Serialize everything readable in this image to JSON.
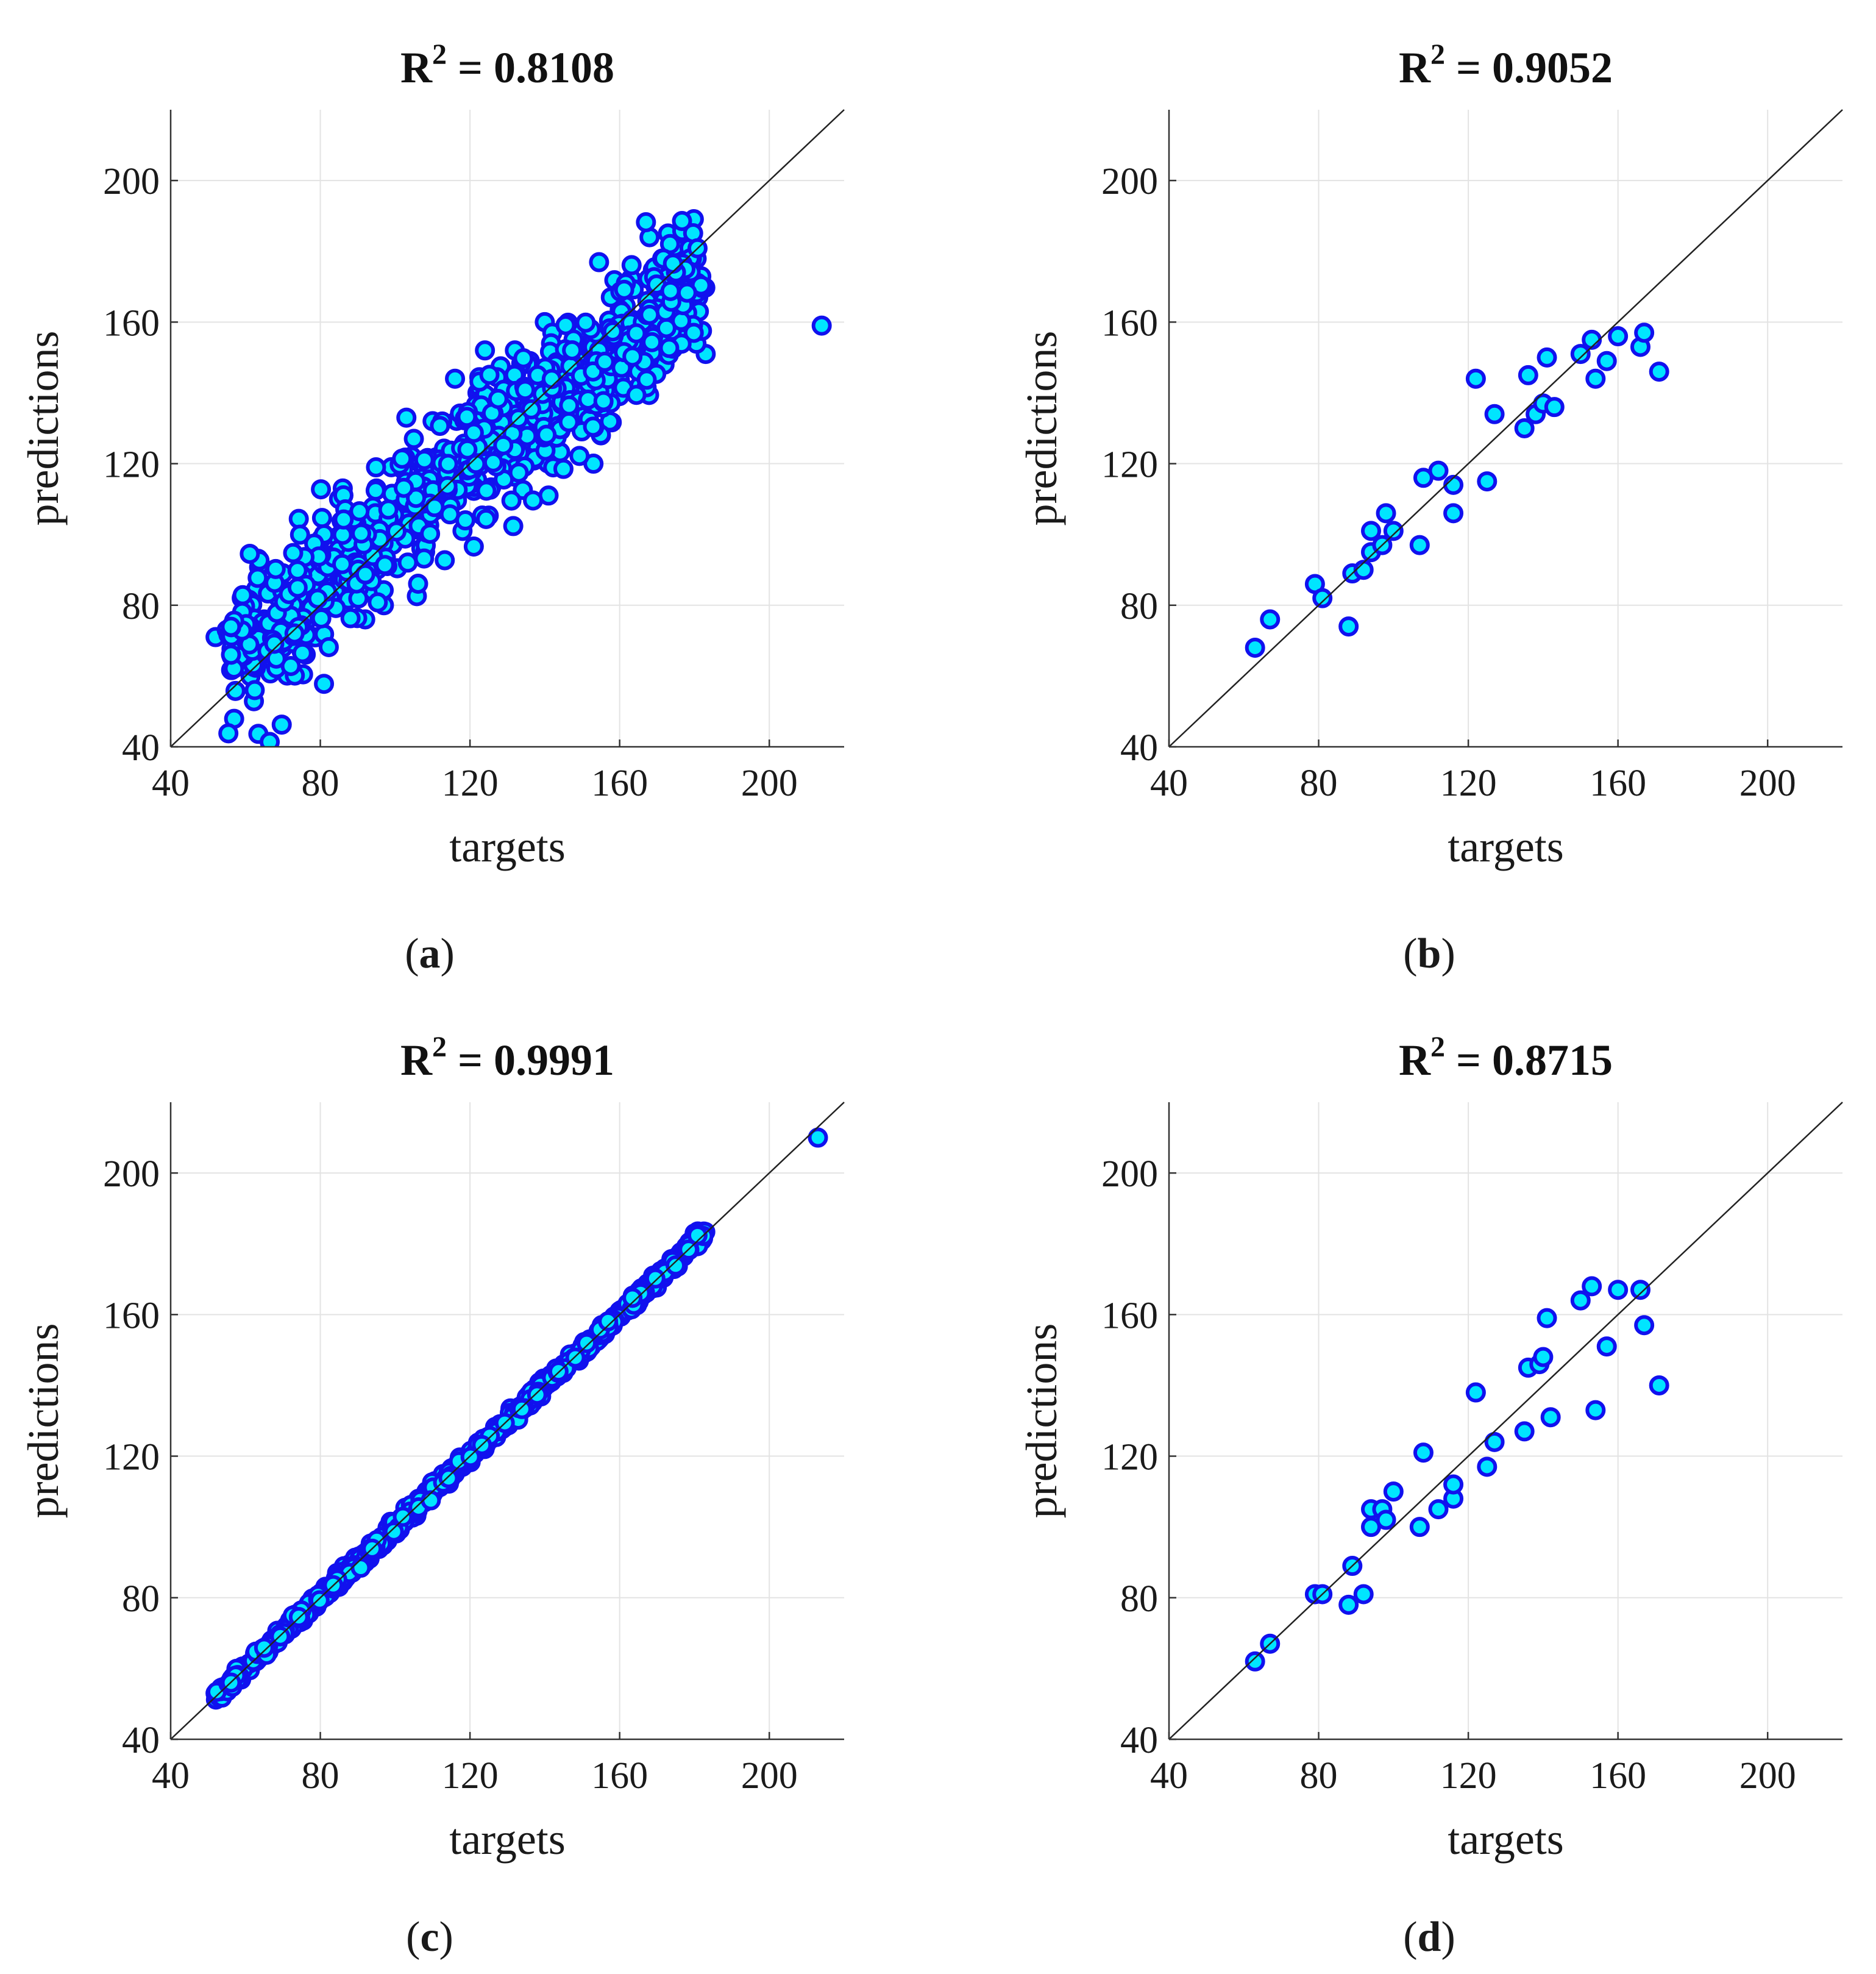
{
  "figure": {
    "captions": [
      "a",
      "b",
      "c",
      "d"
    ]
  },
  "style": {
    "marker_fill": "#00e5ff",
    "marker_edge": "#1111ee",
    "grid_color": "#e3e3e3",
    "axis_color": "#333333",
    "text_color": "#1a1a1a",
    "diag_color": "#222222"
  },
  "chart_data": [
    {
      "type": "scatter",
      "title_prefix": "R",
      "title_sup": "2",
      "title_value": " = 0.8108",
      "xlabel": "targets",
      "ylabel": "predictions",
      "xlim": [
        40,
        220
      ],
      "ylim": [
        40,
        220
      ],
      "xticks": [
        40,
        80,
        120,
        160,
        200
      ],
      "yticks": [
        40,
        80,
        120,
        160,
        200
      ],
      "grid": true,
      "reference_line": "y = x",
      "description": "training set, ~800 points clustered around y=x with spread ~12",
      "points": [
        [
          52,
          71
        ],
        [
          55,
          73
        ],
        [
          57,
          69
        ],
        [
          59,
          82
        ],
        [
          59,
          77
        ],
        [
          65,
          76
        ],
        [
          67,
          70
        ],
        [
          68,
          86
        ],
        [
          70,
          68
        ],
        [
          72,
          80
        ],
        [
          74,
          73
        ],
        [
          75,
          67
        ],
        [
          76,
          75
        ],
        [
          78,
          86
        ],
        [
          80,
          78
        ],
        [
          82,
          94
        ],
        [
          84,
          84
        ],
        [
          85,
          110
        ],
        [
          86,
          113
        ],
        [
          88,
          97
        ],
        [
          90,
          105
        ],
        [
          92,
          76
        ],
        [
          94,
          84
        ],
        [
          95,
          113
        ],
        [
          97,
          80
        ],
        [
          99,
          119
        ],
        [
          101,
          109
        ],
        [
          103,
          133
        ],
        [
          105,
          127
        ],
        [
          107,
          96
        ],
        [
          110,
          132
        ],
        [
          112,
          118
        ],
        [
          114,
          112
        ],
        [
          116,
          144
        ],
        [
          118,
          101
        ],
        [
          120,
          121
        ],
        [
          122,
          140
        ],
        [
          124,
          152
        ],
        [
          126,
          134
        ],
        [
          128,
          125
        ],
        [
          130,
          117
        ],
        [
          132,
          152
        ],
        [
          134,
          131
        ],
        [
          136,
          149
        ],
        [
          138,
          145
        ],
        [
          140,
          160
        ],
        [
          141,
          111
        ],
        [
          142,
          157
        ],
        [
          144,
          146
        ],
        [
          146,
          152
        ],
        [
          148,
          138
        ],
        [
          150,
          158
        ],
        [
          152,
          153
        ],
        [
          153,
          120
        ],
        [
          155,
          128
        ],
        [
          158,
          141
        ],
        [
          160,
          153
        ],
        [
          163,
          151
        ],
        [
          165,
          155
        ],
        [
          167,
          140
        ],
        [
          168,
          158
        ],
        [
          170,
          147
        ],
        [
          172,
          148
        ],
        [
          174,
          160
        ],
        [
          176,
          158
        ],
        [
          177,
          165
        ],
        [
          179,
          168
        ],
        [
          181,
          167
        ],
        [
          183,
          151
        ],
        [
          214,
          159
        ]
      ],
      "generated": {
        "count": 780,
        "x_range": [
          55,
          183
        ],
        "noise_sd": 11,
        "seed": 17
      }
    },
    {
      "type": "scatter",
      "title_prefix": "R",
      "title_sup": "2",
      "title_value": " = 0.9052",
      "xlabel": "targets",
      "ylabel": "predictions",
      "xlim": [
        40,
        220
      ],
      "ylim": [
        40,
        220
      ],
      "xticks": [
        40,
        80,
        120,
        160,
        200
      ],
      "yticks": [
        40,
        80,
        120,
        160,
        200
      ],
      "grid": true,
      "reference_line": "y = x",
      "points": [
        [
          63,
          68
        ],
        [
          67,
          76
        ],
        [
          79,
          86
        ],
        [
          81,
          82
        ],
        [
          88,
          74
        ],
        [
          89,
          89
        ],
        [
          92,
          90
        ],
        [
          94,
          95
        ],
        [
          94,
          101
        ],
        [
          97,
          97
        ],
        [
          98,
          106
        ],
        [
          100,
          101
        ],
        [
          107,
          97
        ],
        [
          108,
          116
        ],
        [
          112,
          118
        ],
        [
          116,
          106
        ],
        [
          116,
          114
        ],
        [
          122,
          144
        ],
        [
          125,
          115
        ],
        [
          127,
          134
        ],
        [
          135,
          130
        ],
        [
          136,
          145
        ],
        [
          138,
          134
        ],
        [
          140,
          137
        ],
        [
          141,
          150
        ],
        [
          143,
          136
        ],
        [
          150,
          151
        ],
        [
          153,
          155
        ],
        [
          154,
          144
        ],
        [
          157,
          149
        ],
        [
          160,
          156
        ],
        [
          166,
          153
        ],
        [
          167,
          157
        ],
        [
          171,
          146
        ]
      ]
    },
    {
      "type": "scatter",
      "title_prefix": "R",
      "title_sup": "2",
      "title_value": " = 0.9991",
      "xlabel": "targets",
      "ylabel": "predictions",
      "xlim": [
        40,
        220
      ],
      "ylim": [
        40,
        220
      ],
      "xticks": [
        40,
        80,
        120,
        160,
        200
      ],
      "yticks": [
        40,
        80,
        120,
        160,
        200
      ],
      "grid": true,
      "reference_line": "y = x",
      "points": [
        [
          52,
          53
        ],
        [
          55,
          55
        ],
        [
          58,
          59
        ],
        [
          59,
          60
        ],
        [
          65,
          65
        ],
        [
          67,
          68
        ],
        [
          70,
          71
        ],
        [
          74,
          74
        ],
        [
          78,
          78
        ],
        [
          82,
          83
        ],
        [
          86,
          86
        ],
        [
          90,
          91
        ],
        [
          94,
          95
        ],
        [
          98,
          98
        ],
        [
          102,
          102
        ],
        [
          106,
          107
        ],
        [
          110,
          110
        ],
        [
          114,
          114
        ],
        [
          118,
          117
        ],
        [
          120,
          121
        ],
        [
          124,
          125
        ],
        [
          128,
          129
        ],
        [
          132,
          132
        ],
        [
          136,
          137
        ],
        [
          140,
          141
        ],
        [
          144,
          145
        ],
        [
          148,
          149
        ],
        [
          152,
          153
        ],
        [
          156,
          157
        ],
        [
          160,
          161
        ],
        [
          164,
          165
        ],
        [
          168,
          169
        ],
        [
          172,
          173
        ],
        [
          176,
          177
        ],
        [
          180,
          180
        ],
        [
          182,
          181
        ],
        [
          213,
          210
        ]
      ],
      "generated": {
        "count": 700,
        "x_range": [
          52,
          183
        ],
        "noise_sd": 1.0,
        "seed": 29
      }
    },
    {
      "type": "scatter",
      "title_prefix": "R",
      "title_sup": "2",
      "title_value": " = 0.8715",
      "xlabel": "targets",
      "ylabel": "predictions",
      "xlim": [
        40,
        220
      ],
      "ylim": [
        40,
        220
      ],
      "xticks": [
        40,
        80,
        120,
        160,
        200
      ],
      "yticks": [
        40,
        80,
        120,
        160,
        200
      ],
      "grid": true,
      "reference_line": "y = x",
      "points": [
        [
          63,
          62
        ],
        [
          67,
          67
        ],
        [
          79,
          81
        ],
        [
          81,
          81
        ],
        [
          88,
          78
        ],
        [
          89,
          89
        ],
        [
          92,
          81
        ],
        [
          94,
          100
        ],
        [
          94,
          105
        ],
        [
          97,
          105
        ],
        [
          98,
          102
        ],
        [
          100,
          110
        ],
        [
          107,
          100
        ],
        [
          108,
          121
        ],
        [
          112,
          105
        ],
        [
          116,
          108
        ],
        [
          116,
          112
        ],
        [
          122,
          138
        ],
        [
          125,
          117
        ],
        [
          127,
          124
        ],
        [
          135,
          127
        ],
        [
          136,
          145
        ],
        [
          139,
          146
        ],
        [
          140,
          148
        ],
        [
          141,
          159
        ],
        [
          142,
          131
        ],
        [
          150,
          164
        ],
        [
          153,
          168
        ],
        [
          154,
          133
        ],
        [
          157,
          151
        ],
        [
          160,
          167
        ],
        [
          166,
          167
        ],
        [
          167,
          157
        ],
        [
          171,
          140
        ]
      ]
    }
  ]
}
